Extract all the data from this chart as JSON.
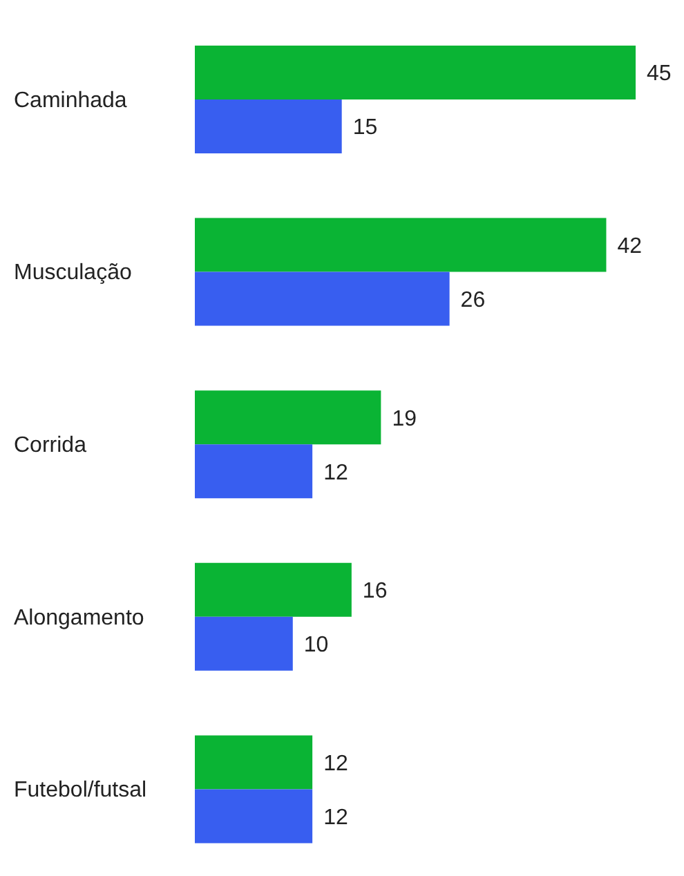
{
  "chart_data": {
    "type": "bar",
    "orientation": "horizontal",
    "categories": [
      "Caminhada",
      "Musculação",
      "Corrida",
      "Alongamento",
      "Futebol/futsal"
    ],
    "series": [
      {
        "color": "#0ab434",
        "values": [
          45,
          42,
          19,
          16,
          12
        ]
      },
      {
        "color": "#385ef0",
        "values": [
          15,
          26,
          12,
          10,
          12
        ]
      }
    ],
    "data_labels": true,
    "legend": false,
    "grid": false
  }
}
